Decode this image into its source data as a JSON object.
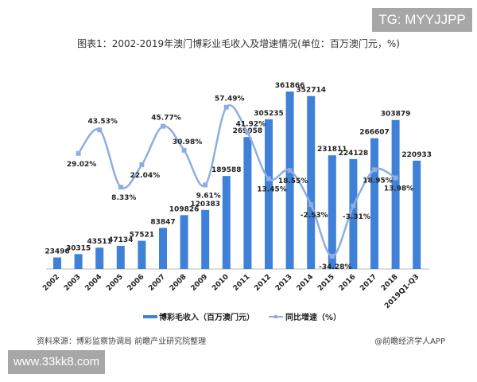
{
  "watermark_top": "TG: MYYJJPP",
  "watermark_bottom": "www.33kk8.com",
  "source": "资料来源：博彩监察协调局 前瞻产业研究院整理",
  "credit": "@前瞻经济学人APP",
  "colors": {
    "bar": "#3f80d8",
    "line": "#8eaee0"
  },
  "chart_data": {
    "type": "bar+line",
    "title": "图表1：2002-2019年澳门博彩业毛收入及增速情况(单位：百万澳门元，%)",
    "categories": [
      "2002",
      "2003",
      "2004",
      "2005",
      "2006",
      "2007",
      "2008",
      "2009",
      "2010",
      "2011",
      "2012",
      "2013",
      "2014",
      "2015",
      "2016",
      "2017",
      "2018",
      "2019Q1-Q3"
    ],
    "series": [
      {
        "name": "博彩毛收入（百万澳门元）",
        "type": "bar",
        "values": [
          23496,
          30315,
          43511,
          47134,
          57521,
          83847,
          109826,
          120383,
          189588,
          269058,
          305235,
          361866,
          352714,
          231811,
          224128,
          266607,
          303879,
          220933
        ],
        "labels": [
          "23496",
          "30315",
          "43511",
          "47134",
          "57521",
          "83847",
          "109826",
          "120383",
          "189588",
          "269058",
          "305235",
          "361866",
          "352714",
          "231811",
          "224128",
          "266607",
          "303879",
          "220933"
        ]
      },
      {
        "name": "同比增速（%）",
        "type": "line",
        "smooth": true,
        "values": [
          null,
          29.02,
          43.53,
          8.33,
          22.04,
          45.77,
          30.98,
          9.61,
          57.49,
          41.92,
          13.45,
          18.55,
          -2.53,
          -34.28,
          -3.31,
          18.95,
          13.98,
          null
        ],
        "labels": [
          "",
          "29.02%",
          "43.53%",
          "8.33%",
          "22.04%",
          "45.77%",
          "30.98%",
          "9.61%",
          "57.49%",
          "41.92%",
          "13.45%",
          "18.55%",
          "-2.53%",
          "-34.28%",
          "-3.31%",
          "18.95%",
          "13.98%",
          ""
        ]
      }
    ],
    "legend": "bottom",
    "grid": false
  }
}
